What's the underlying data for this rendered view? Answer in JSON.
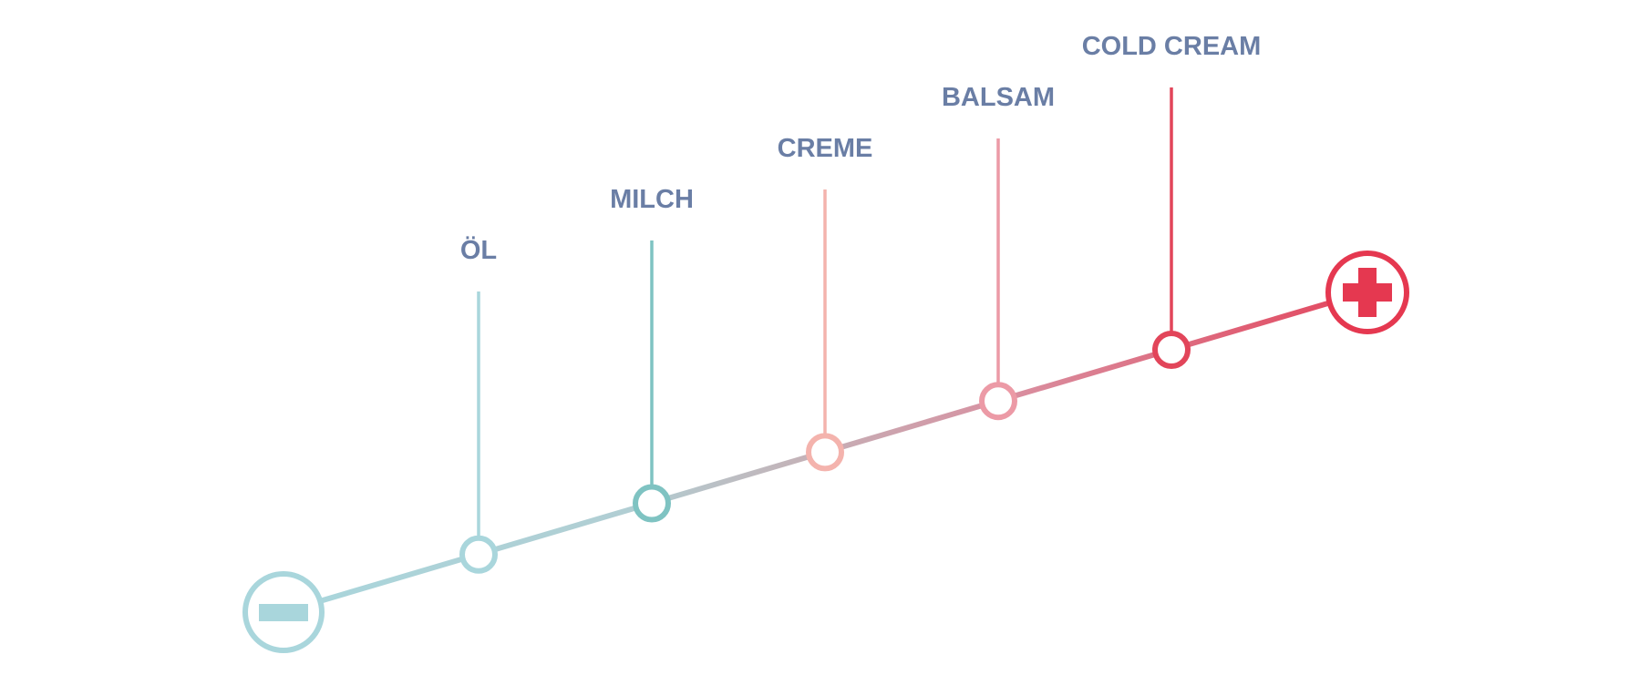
{
  "scale": {
    "min_symbol": "minus-icon",
    "max_symbol": "plus-icon",
    "stages": [
      {
        "label": "ÖL",
        "color": "#a9d6dc"
      },
      {
        "label": "MILCH",
        "color": "#7fc3c2"
      },
      {
        "label": "CREME",
        "color": "#f4b3ad"
      },
      {
        "label": "BALSAM",
        "color": "#ec9aa6"
      },
      {
        "label": "COLD CREAM",
        "color": "#e2455a"
      }
    ]
  },
  "colors": {
    "label_text": "#6a7ea5",
    "low_end": "#a9d6dc",
    "high_end": "#e53850"
  }
}
